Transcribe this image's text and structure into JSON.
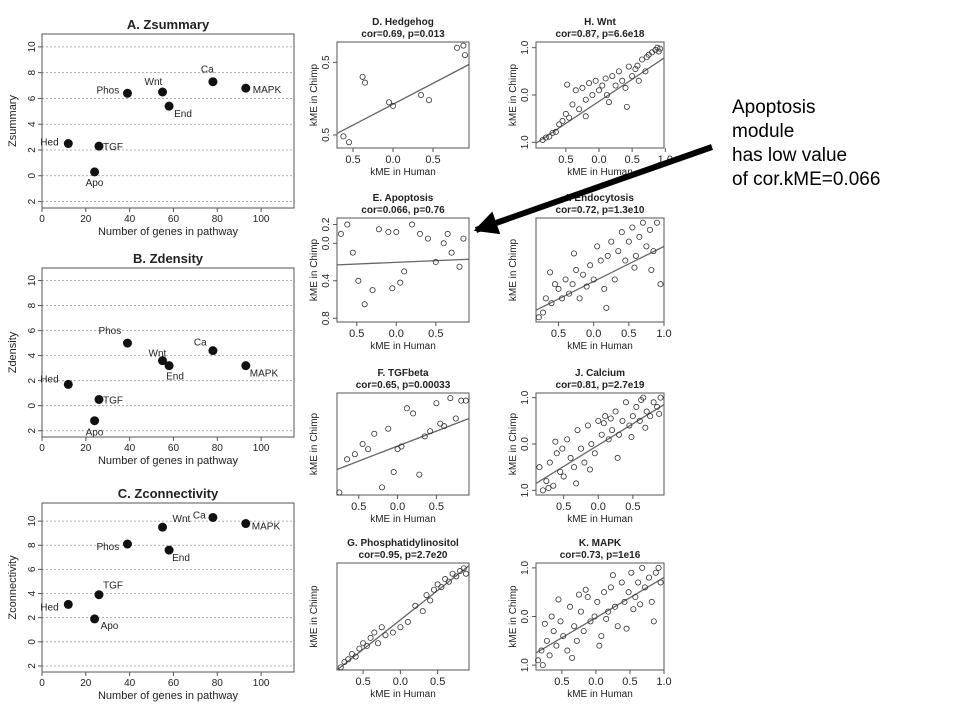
{
  "annotation": {
    "lines": [
      "Apoptosis",
      "module",
      "has low value",
      "of cor.kME=0.066"
    ]
  },
  "chart_data": [
    {
      "type": "scatter",
      "title": "A. Zsummary",
      "xlabel": "Number of genes in pathway",
      "ylabel": "Zsummary",
      "xlim": [
        0,
        115
      ],
      "ylim": [
        -2.5,
        11
      ],
      "xticks": [
        0,
        20,
        40,
        60,
        80,
        100
      ],
      "yticks": [
        -2,
        0,
        2,
        4,
        6,
        8,
        10
      ],
      "ytick_labels": [
        "2",
        "0",
        "2",
        "4",
        "6",
        "8",
        "10"
      ],
      "grid": "horizontal dotted",
      "points": [
        {
          "label": "Hed",
          "x": 12,
          "y": 2.5
        },
        {
          "label": "TGF",
          "x": 26,
          "y": 2.3
        },
        {
          "label": "Apo",
          "x": 24,
          "y": 0.3
        },
        {
          "label": "Phos",
          "x": 39,
          "y": 6.4
        },
        {
          "label": "Wnt",
          "x": 55,
          "y": 6.5
        },
        {
          "label": "End",
          "x": 58,
          "y": 5.4
        },
        {
          "label": "Ca",
          "x": 78,
          "y": 7.3
        },
        {
          "label": "MAPK",
          "x": 93,
          "y": 6.8
        }
      ]
    },
    {
      "type": "scatter",
      "title": "B. Zdensity",
      "xlabel": "Number of genes in pathway",
      "ylabel": "Zdensity",
      "xlim": [
        0,
        115
      ],
      "ylim": [
        -2.5,
        11
      ],
      "xticks": [
        0,
        20,
        40,
        60,
        80,
        100
      ],
      "yticks": [
        -2,
        0,
        2,
        4,
        6,
        8,
        10
      ],
      "ytick_labels": [
        "2",
        "0",
        "2",
        "4",
        "6",
        "8",
        "10"
      ],
      "grid": "horizontal dotted",
      "points": [
        {
          "label": "Hed",
          "x": 12,
          "y": 1.7
        },
        {
          "label": "TGF",
          "x": 26,
          "y": 0.5
        },
        {
          "label": "Apo",
          "x": 24,
          "y": -1.2
        },
        {
          "label": "Phos",
          "x": 39,
          "y": 5.0
        },
        {
          "label": "Wnt",
          "x": 55,
          "y": 3.6
        },
        {
          "label": "End",
          "x": 58,
          "y": 3.2
        },
        {
          "label": "Ca",
          "x": 78,
          "y": 4.4
        },
        {
          "label": "MAPK",
          "x": 93,
          "y": 3.2
        }
      ]
    },
    {
      "type": "scatter",
      "title": "C. Zconnectivity",
      "xlabel": "Number of genes in pathway",
      "ylabel": "Zconnectivity",
      "xlim": [
        0,
        115
      ],
      "ylim": [
        -2.5,
        11.5
      ],
      "xticks": [
        0,
        20,
        40,
        60,
        80,
        100
      ],
      "yticks": [
        -2,
        0,
        2,
        4,
        6,
        8,
        10
      ],
      "ytick_labels": [
        "2",
        "0",
        "2",
        "4",
        "6",
        "8",
        "10"
      ],
      "grid": "horizontal dotted",
      "points": [
        {
          "label": "Hed",
          "x": 12,
          "y": 3.1
        },
        {
          "label": "TGF",
          "x": 26,
          "y": 3.9
        },
        {
          "label": "Apo",
          "x": 24,
          "y": 1.9
        },
        {
          "label": "Phos",
          "x": 39,
          "y": 8.1
        },
        {
          "label": "Wnt",
          "x": 55,
          "y": 9.5
        },
        {
          "label": "End",
          "x": 58,
          "y": 7.6
        },
        {
          "label": "Ca",
          "x": 78,
          "y": 10.3
        },
        {
          "label": "MAPK",
          "x": 93,
          "y": 9.8
        }
      ]
    },
    {
      "type": "scatter",
      "title": "D. Hedgehog",
      "subtitle": "cor=0.69, p=0.013",
      "xlabel": "kME in Human",
      "ylabel": "kME in Chimp",
      "xlim": [
        -0.7,
        0.95
      ],
      "ylim": [
        -0.68,
        0.78
      ],
      "xticks": [
        -0.5,
        0.0,
        0.5
      ],
      "xtick_labels": [
        "0.5",
        "0.0",
        "0.5"
      ],
      "yticks": [
        -0.5,
        0.5
      ],
      "ytick_labels": [
        "0.5",
        "0.5"
      ],
      "fit": [
        [
          -0.7,
          -0.48
        ],
        [
          0.95,
          0.47
        ]
      ],
      "x": [
        -0.62,
        -0.55,
        -0.38,
        -0.35,
        -0.05,
        0.0,
        0.35,
        0.45,
        0.8,
        0.88,
        0.9
      ],
      "y": [
        -0.52,
        -0.6,
        0.3,
        0.22,
        -0.05,
        -0.1,
        0.05,
        -0.02,
        0.7,
        0.73,
        0.6
      ]
    },
    {
      "type": "scatter",
      "title": "H. Wnt",
      "subtitle": "cor=0.87, p=6.6e18",
      "xlabel": "kME in Human",
      "ylabel": "kME in Chimp",
      "xlim": [
        -0.95,
        0.98
      ],
      "ylim": [
        -1.12,
        1.12
      ],
      "xticks": [
        -0.5,
        0.0,
        0.5,
        1.0
      ],
      "xtick_labels": [
        "0.5",
        "0.0",
        "0.5",
        "1.0"
      ],
      "yticks": [
        -1.0,
        0.0,
        1.0
      ],
      "ytick_labels": [
        "1.0",
        "0.0",
        "1.0"
      ],
      "fit": [
        [
          -0.95,
          -1.02
        ],
        [
          0.98,
          0.78
        ]
      ],
      "x": [
        -0.85,
        -0.8,
        -0.75,
        -0.7,
        -0.65,
        -0.6,
        -0.55,
        -0.5,
        -0.45,
        -0.4,
        -0.35,
        -0.3,
        -0.25,
        -0.2,
        -0.15,
        -0.1,
        -0.05,
        0.0,
        0.05,
        0.1,
        0.15,
        0.2,
        0.25,
        0.3,
        0.35,
        0.4,
        0.45,
        0.5,
        0.55,
        0.6,
        0.65,
        0.7,
        0.75,
        0.8,
        0.85,
        0.88,
        0.9,
        0.92,
        -0.48,
        -0.2,
        0.12,
        0.42,
        0.58,
        0.72
      ],
      "y": [
        -0.95,
        -0.9,
        -0.88,
        -0.8,
        -0.78,
        -0.62,
        -0.55,
        -0.4,
        -0.48,
        -0.2,
        0.1,
        -0.3,
        0.15,
        -0.1,
        0.25,
        0.0,
        0.3,
        0.1,
        0.2,
        0.35,
        -0.15,
        0.4,
        0.2,
        0.5,
        0.3,
        0.15,
        0.6,
        0.4,
        0.55,
        0.3,
        0.75,
        0.5,
        0.85,
        0.9,
        0.95,
        1.0,
        0.92,
        0.98,
        0.22,
        -0.45,
        0.0,
        -0.25,
        0.62,
        0.8
      ]
    },
    {
      "type": "scatter",
      "title": "E. Apoptosis",
      "subtitle": "cor=0.066, p=0.76",
      "xlabel": "kME in Human",
      "ylabel": "kME in Chimp",
      "xlim": [
        -0.75,
        0.92
      ],
      "ylim": [
        -0.84,
        0.27
      ],
      "xticks": [
        -0.5,
        0.0,
        0.5
      ],
      "xtick_labels": [
        "0.5",
        "0.0",
        "0.5"
      ],
      "yticks": [
        -0.8,
        -0.4,
        0.0,
        0.2
      ],
      "ytick_labels": [
        "0.8",
        "0.4",
        "0.0",
        "0.2"
      ],
      "fit": [
        [
          -0.75,
          -0.23
        ],
        [
          0.92,
          -0.17
        ]
      ],
      "x": [
        -0.7,
        -0.62,
        -0.55,
        -0.48,
        -0.4,
        -0.3,
        -0.22,
        -0.1,
        -0.05,
        0.0,
        0.05,
        0.1,
        0.2,
        0.3,
        0.4,
        0.5,
        0.6,
        0.65,
        0.7,
        0.8,
        0.85
      ],
      "y": [
        0.1,
        0.2,
        -0.1,
        -0.4,
        -0.65,
        -0.5,
        0.15,
        0.12,
        -0.48,
        0.12,
        -0.42,
        -0.3,
        0.2,
        0.1,
        0.05,
        -0.2,
        0.0,
        0.1,
        -0.1,
        -0.25,
        0.05
      ]
    },
    {
      "type": "scatter",
      "title": "I. Endocytosis",
      "subtitle": "cor=0.72, p=1.3e10",
      "xlabel": "kME in Human",
      "ylabel": "kME in Chimp",
      "xlim": [
        -0.82,
        1.0
      ],
      "ylim": [
        -1.1,
        1.1
      ],
      "xticks": [
        -0.5,
        0.0,
        0.5,
        1.0
      ],
      "xtick_labels": [
        "0.5",
        "0.0",
        "0.5",
        "1.0"
      ],
      "fit": [
        [
          -0.82,
          -0.85
        ],
        [
          1.0,
          0.5
        ]
      ],
      "x": [
        -0.78,
        -0.72,
        -0.68,
        -0.6,
        -0.55,
        -0.5,
        -0.45,
        -0.4,
        -0.35,
        -0.3,
        -0.25,
        -0.2,
        -0.15,
        -0.1,
        -0.05,
        0.0,
        0.05,
        0.1,
        0.15,
        0.2,
        0.25,
        0.3,
        0.35,
        0.4,
        0.45,
        0.5,
        0.55,
        0.6,
        0.65,
        0.7,
        0.75,
        0.8,
        0.85,
        0.9,
        0.95,
        -0.62,
        -0.28,
        0.18,
        0.58,
        0.82
      ],
      "y": [
        -1.0,
        -0.9,
        -0.6,
        -0.7,
        -0.3,
        -0.4,
        -0.6,
        -0.2,
        -0.5,
        -0.3,
        0.0,
        -0.6,
        -0.1,
        -0.35,
        0.1,
        -0.2,
        0.5,
        0.2,
        -0.4,
        0.3,
        0.6,
        -0.2,
        0.4,
        0.8,
        0.2,
        0.6,
        0.9,
        0.3,
        0.7,
        1.0,
        0.5,
        0.85,
        0.4,
        1.0,
        -0.3,
        -0.05,
        0.35,
        -0.8,
        0.05,
        0.0
      ]
    },
    {
      "type": "scatter",
      "title": "F. TGFbeta",
      "subtitle": "cor=0.65, p=0.00033",
      "xlabel": "kME in Human",
      "ylabel": "kME in Chimp",
      "xlim": [
        -0.78,
        0.92
      ],
      "ylim": [
        -1.0,
        1.0
      ],
      "xticks": [
        -0.5,
        0.0,
        0.5
      ],
      "xtick_labels": [
        "0.5",
        "0.0",
        "0.5"
      ],
      "fit": [
        [
          -0.78,
          -0.5
        ],
        [
          0.92,
          0.5
        ]
      ],
      "x": [
        -0.75,
        -0.65,
        -0.55,
        -0.45,
        -0.38,
        -0.3,
        -0.2,
        -0.12,
        -0.05,
        0.0,
        0.05,
        0.12,
        0.2,
        0.28,
        0.35,
        0.42,
        0.5,
        0.55,
        0.6,
        0.68,
        0.75,
        0.82,
        0.88
      ],
      "y": [
        -0.95,
        -0.3,
        -0.2,
        0.0,
        -0.1,
        0.2,
        -0.85,
        0.3,
        -0.55,
        -0.1,
        -0.05,
        0.7,
        0.6,
        -0.6,
        0.15,
        0.25,
        0.8,
        0.4,
        0.35,
        0.9,
        0.5,
        0.85,
        0.85
      ]
    },
    {
      "type": "scatter",
      "title": "J. Calcium",
      "subtitle": "cor=0.81, p=2.7e19",
      "xlabel": "kME in Human",
      "ylabel": "kME in Chimp",
      "xlim": [
        -0.9,
        0.95
      ],
      "ylim": [
        -1.1,
        1.1
      ],
      "xticks": [
        -0.5,
        0.0,
        0.5
      ],
      "xtick_labels": [
        "0.5",
        "0.0",
        "0.5"
      ],
      "yticks": [
        -1.0,
        0.0,
        1.0
      ],
      "ytick_labels": [
        "1.0",
        "0.0",
        "1.0"
      ],
      "fit": [
        [
          -0.9,
          -0.85
        ],
        [
          0.95,
          0.85
        ]
      ],
      "x": [
        -0.85,
        -0.8,
        -0.75,
        -0.7,
        -0.65,
        -0.6,
        -0.55,
        -0.5,
        -0.45,
        -0.4,
        -0.35,
        -0.3,
        -0.25,
        -0.2,
        -0.15,
        -0.1,
        -0.05,
        0.0,
        0.05,
        0.1,
        0.15,
        0.2,
        0.25,
        0.3,
        0.35,
        0.4,
        0.45,
        0.5,
        0.55,
        0.6,
        0.65,
        0.7,
        0.75,
        0.8,
        0.85,
        0.9,
        -0.72,
        -0.52,
        -0.32,
        -0.12,
        0.08,
        0.28,
        0.48,
        0.68,
        0.88,
        -0.62,
        0.18,
        0.62
      ],
      "y": [
        -0.5,
        -1.0,
        -0.8,
        -0.4,
        -0.9,
        -0.2,
        -0.6,
        -0.7,
        0.1,
        -0.3,
        -0.5,
        0.3,
        -0.1,
        -0.4,
        0.4,
        0.0,
        -0.2,
        0.5,
        0.2,
        0.6,
        0.1,
        0.3,
        0.7,
        0.2,
        0.5,
        0.9,
        0.4,
        0.6,
        0.8,
        0.5,
        1.0,
        0.7,
        0.6,
        0.9,
        0.8,
        1.0,
        -0.95,
        -0.1,
        -0.85,
        -0.55,
        0.45,
        -0.3,
        0.15,
        0.35,
        0.65,
        0.05,
        0.55,
        0.95
      ]
    },
    {
      "type": "scatter",
      "title": "G. Phosphatidylinositol",
      "subtitle": "cor=0.95, p=2.7e20",
      "xlabel": "kME in Human",
      "ylabel": "kME in Chimp",
      "xlim": [
        -0.85,
        0.92
      ],
      "ylim": [
        -1.0,
        1.0
      ],
      "xticks": [
        -0.5,
        0.0,
        0.5
      ],
      "xtick_labels": [
        "0.5",
        "0.0",
        "0.5"
      ],
      "fit": [
        [
          -0.85,
          -1.0
        ],
        [
          0.92,
          0.95
        ]
      ],
      "x": [
        -0.8,
        -0.75,
        -0.7,
        -0.65,
        -0.6,
        -0.55,
        -0.5,
        -0.45,
        -0.4,
        -0.35,
        -0.3,
        -0.25,
        -0.2,
        -0.1,
        0.0,
        0.1,
        0.2,
        0.3,
        0.35,
        0.4,
        0.45,
        0.5,
        0.55,
        0.6,
        0.65,
        0.7,
        0.75,
        0.8,
        0.85,
        0.88
      ],
      "y": [
        -0.95,
        -0.85,
        -0.8,
        -0.7,
        -0.75,
        -0.6,
        -0.5,
        -0.55,
        -0.4,
        -0.3,
        -0.5,
        -0.2,
        -0.35,
        -0.3,
        -0.2,
        -0.1,
        0.2,
        0.1,
        0.4,
        0.3,
        0.5,
        0.6,
        0.55,
        0.7,
        0.65,
        0.8,
        0.75,
        0.85,
        0.9,
        0.8
      ]
    },
    {
      "type": "scatter",
      "title": "K. MAPK",
      "subtitle": "cor=0.73, p=1e16",
      "xlabel": "kME in Human",
      "ylabel": "kME in Chimp",
      "xlim": [
        -0.88,
        1.0
      ],
      "ylim": [
        -1.1,
        1.1
      ],
      "xticks": [
        -0.5,
        0.0,
        0.5,
        1.0
      ],
      "xtick_labels": [
        "0.5",
        "0.0",
        "0.5",
        "1.0"
      ],
      "yticks": [
        -1.0,
        0.0,
        1.0
      ],
      "ytick_labels": [
        "1.0",
        "0.0",
        "1.0"
      ],
      "fit": [
        [
          -0.88,
          -0.75
        ],
        [
          1.0,
          0.8
        ]
      ],
      "x": [
        -0.85,
        -0.8,
        -0.78,
        -0.72,
        -0.68,
        -0.62,
        -0.58,
        -0.52,
        -0.48,
        -0.42,
        -0.38,
        -0.32,
        -0.28,
        -0.22,
        -0.18,
        -0.12,
        -0.08,
        -0.02,
        0.02,
        0.08,
        0.12,
        0.18,
        0.22,
        0.28,
        0.32,
        0.38,
        0.42,
        0.48,
        0.52,
        0.58,
        0.62,
        0.68,
        0.72,
        0.78,
        0.82,
        0.88,
        0.92,
        0.95,
        -0.75,
        -0.55,
        -0.35,
        -0.15,
        0.05,
        0.25,
        0.45,
        0.65,
        0.85,
        -0.65,
        -0.25,
        0.15,
        0.55
      ],
      "y": [
        -0.9,
        -0.7,
        -1.0,
        -0.5,
        -0.8,
        -0.3,
        -0.6,
        -0.1,
        -0.4,
        -0.7,
        0.2,
        -0.2,
        -0.5,
        0.1,
        -0.3,
        0.4,
        -0.1,
        0.0,
        0.3,
        -0.4,
        0.5,
        0.1,
        0.6,
        0.2,
        -0.2,
        0.7,
        0.3,
        0.5,
        0.9,
        0.4,
        0.7,
        1.0,
        0.6,
        0.8,
        0.3,
        0.9,
        1.0,
        0.7,
        -0.15,
        0.35,
        -0.85,
        0.55,
        -0.6,
        0.85,
        -0.25,
        0.25,
        -0.1,
        0.0,
        0.45,
        -0.05,
        0.15
      ]
    }
  ]
}
